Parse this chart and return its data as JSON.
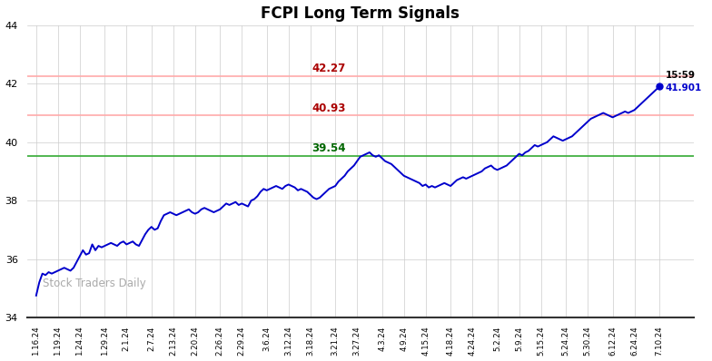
{
  "title": "FCPI Long Term Signals",
  "watermark": "Stock Traders Daily",
  "ylim": [
    34,
    44
  ],
  "yticks": [
    34,
    36,
    38,
    40,
    42,
    44
  ],
  "hline_green": 39.54,
  "hline_red1": 40.93,
  "hline_red2": 42.27,
  "hline_green_color": "#33aa33",
  "hline_red1_color": "#ffaaaa",
  "hline_red2_color": "#ffaaaa",
  "annotation_42_27": "42.27",
  "annotation_40_93": "40.93",
  "annotation_39_54": "39.54",
  "ann_red_color": "#aa0000",
  "ann_green_color": "#006600",
  "last_time": "15:59",
  "last_value": "41.901",
  "line_color": "#0000cc",
  "bg_color": "#ffffff",
  "grid_color": "#cccccc",
  "xtick_labels": [
    "1.16.24",
    "1.19.24",
    "1.24.24",
    "1.29.24",
    "2.1.24",
    "2.7.24",
    "2.13.24",
    "2.20.24",
    "2.26.24",
    "2.29.24",
    "3.6.24",
    "3.12.24",
    "3.18.24",
    "3.21.24",
    "3.27.24",
    "4.3.24",
    "4.9.24",
    "4.15.24",
    "4.18.24",
    "4.24.24",
    "5.2.24",
    "5.9.24",
    "5.15.24",
    "5.24.24",
    "5.30.24",
    "6.12.24",
    "6.24.24",
    "7.10.24"
  ],
  "y_values": [
    34.75,
    35.2,
    35.5,
    35.45,
    35.55,
    35.5,
    35.55,
    35.6,
    35.65,
    35.7,
    35.65,
    35.6,
    35.7,
    35.9,
    36.1,
    36.3,
    36.15,
    36.2,
    36.5,
    36.3,
    36.45,
    36.4,
    36.45,
    36.5,
    36.55,
    36.5,
    36.45,
    36.55,
    36.6,
    36.5,
    36.55,
    36.6,
    36.5,
    36.45,
    36.65,
    36.85,
    37.0,
    37.1,
    37.0,
    37.05,
    37.3,
    37.5,
    37.55,
    37.6,
    37.55,
    37.5,
    37.55,
    37.6,
    37.65,
    37.7,
    37.6,
    37.55,
    37.6,
    37.7,
    37.75,
    37.7,
    37.65,
    37.6,
    37.65,
    37.7,
    37.8,
    37.9,
    37.85,
    37.9,
    37.95,
    37.85,
    37.9,
    37.85,
    37.8,
    38.0,
    38.05,
    38.15,
    38.3,
    38.4,
    38.35,
    38.4,
    38.45,
    38.5,
    38.45,
    38.4,
    38.5,
    38.55,
    38.5,
    38.45,
    38.35,
    38.4,
    38.35,
    38.3,
    38.2,
    38.1,
    38.05,
    38.1,
    38.2,
    38.3,
    38.4,
    38.45,
    38.5,
    38.65,
    38.75,
    38.85,
    39.0,
    39.1,
    39.2,
    39.35,
    39.5,
    39.55,
    39.6,
    39.65,
    39.55,
    39.5,
    39.55,
    39.45,
    39.35,
    39.3,
    39.25,
    39.15,
    39.05,
    38.95,
    38.85,
    38.8,
    38.75,
    38.7,
    38.65,
    38.6,
    38.5,
    38.55,
    38.45,
    38.5,
    38.45,
    38.5,
    38.55,
    38.6,
    38.55,
    38.5,
    38.6,
    38.7,
    38.75,
    38.8,
    38.75,
    38.8,
    38.85,
    38.9,
    38.95,
    39.0,
    39.1,
    39.15,
    39.2,
    39.1,
    39.05,
    39.1,
    39.15,
    39.2,
    39.3,
    39.4,
    39.5,
    39.6,
    39.55,
    39.65,
    39.7,
    39.8,
    39.9,
    39.85,
    39.9,
    39.95,
    40.0,
    40.1,
    40.2,
    40.15,
    40.1,
    40.05,
    40.1,
    40.15,
    40.2,
    40.3,
    40.4,
    40.5,
    40.6,
    40.7,
    40.8,
    40.85,
    40.9,
    40.95,
    41.0,
    40.95,
    40.9,
    40.85,
    40.9,
    40.95,
    41.0,
    41.05,
    41.0,
    41.05,
    41.1,
    41.2,
    41.3,
    41.4,
    41.5,
    41.6,
    41.7,
    41.8,
    41.901
  ]
}
